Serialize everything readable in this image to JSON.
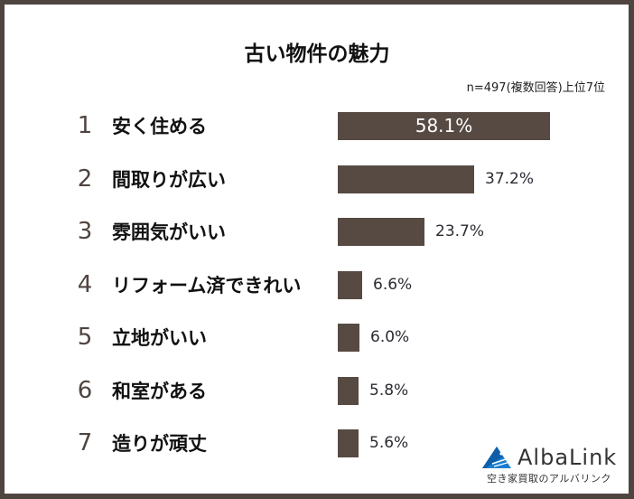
{
  "title": "古い物件の魅力",
  "note": "n=497(複数回答)上位7位",
  "colors": {
    "bar": "#574a43",
    "frame": "#4f4540",
    "rank": "#4f4540",
    "logo_blue": "#1a7fd0"
  },
  "rows": [
    {
      "rank": "1",
      "label": "安く住める",
      "value": 58.1,
      "value_label": "58.1%"
    },
    {
      "rank": "2",
      "label": "間取りが広い",
      "value": 37.2,
      "value_label": "37.2%"
    },
    {
      "rank": "3",
      "label": "雰囲気がいい",
      "value": 23.7,
      "value_label": "23.7%"
    },
    {
      "rank": "4",
      "label": "リフォーム済できれい",
      "value": 6.6,
      "value_label": "6.6%"
    },
    {
      "rank": "5",
      "label": "立地がいい",
      "value": 6.0,
      "value_label": "6.0%"
    },
    {
      "rank": "6",
      "label": "和室がある",
      "value": 5.8,
      "value_label": "5.8%"
    },
    {
      "rank": "7",
      "label": "造りが頑丈",
      "value": 5.6,
      "value_label": "5.6%"
    }
  ],
  "logo": {
    "name": "AlbaLink",
    "tagline": "空き家買取のアルバリンク",
    "icon": "albalink-triangle-icon"
  },
  "chart_data": {
    "type": "bar",
    "orientation": "horizontal",
    "title": "古い物件の魅力",
    "subtitle": "n=497(複数回答)上位7位",
    "categories": [
      "安く住める",
      "間取りが広い",
      "雰囲気がいい",
      "リフォーム済できれい",
      "立地がいい",
      "和室がある",
      "造りが頑丈"
    ],
    "values": [
      58.1,
      37.2,
      23.7,
      6.6,
      6.0,
      5.8,
      5.6
    ],
    "unit": "%",
    "xlabel": "",
    "ylabel": "",
    "grid": false,
    "legend": null
  }
}
